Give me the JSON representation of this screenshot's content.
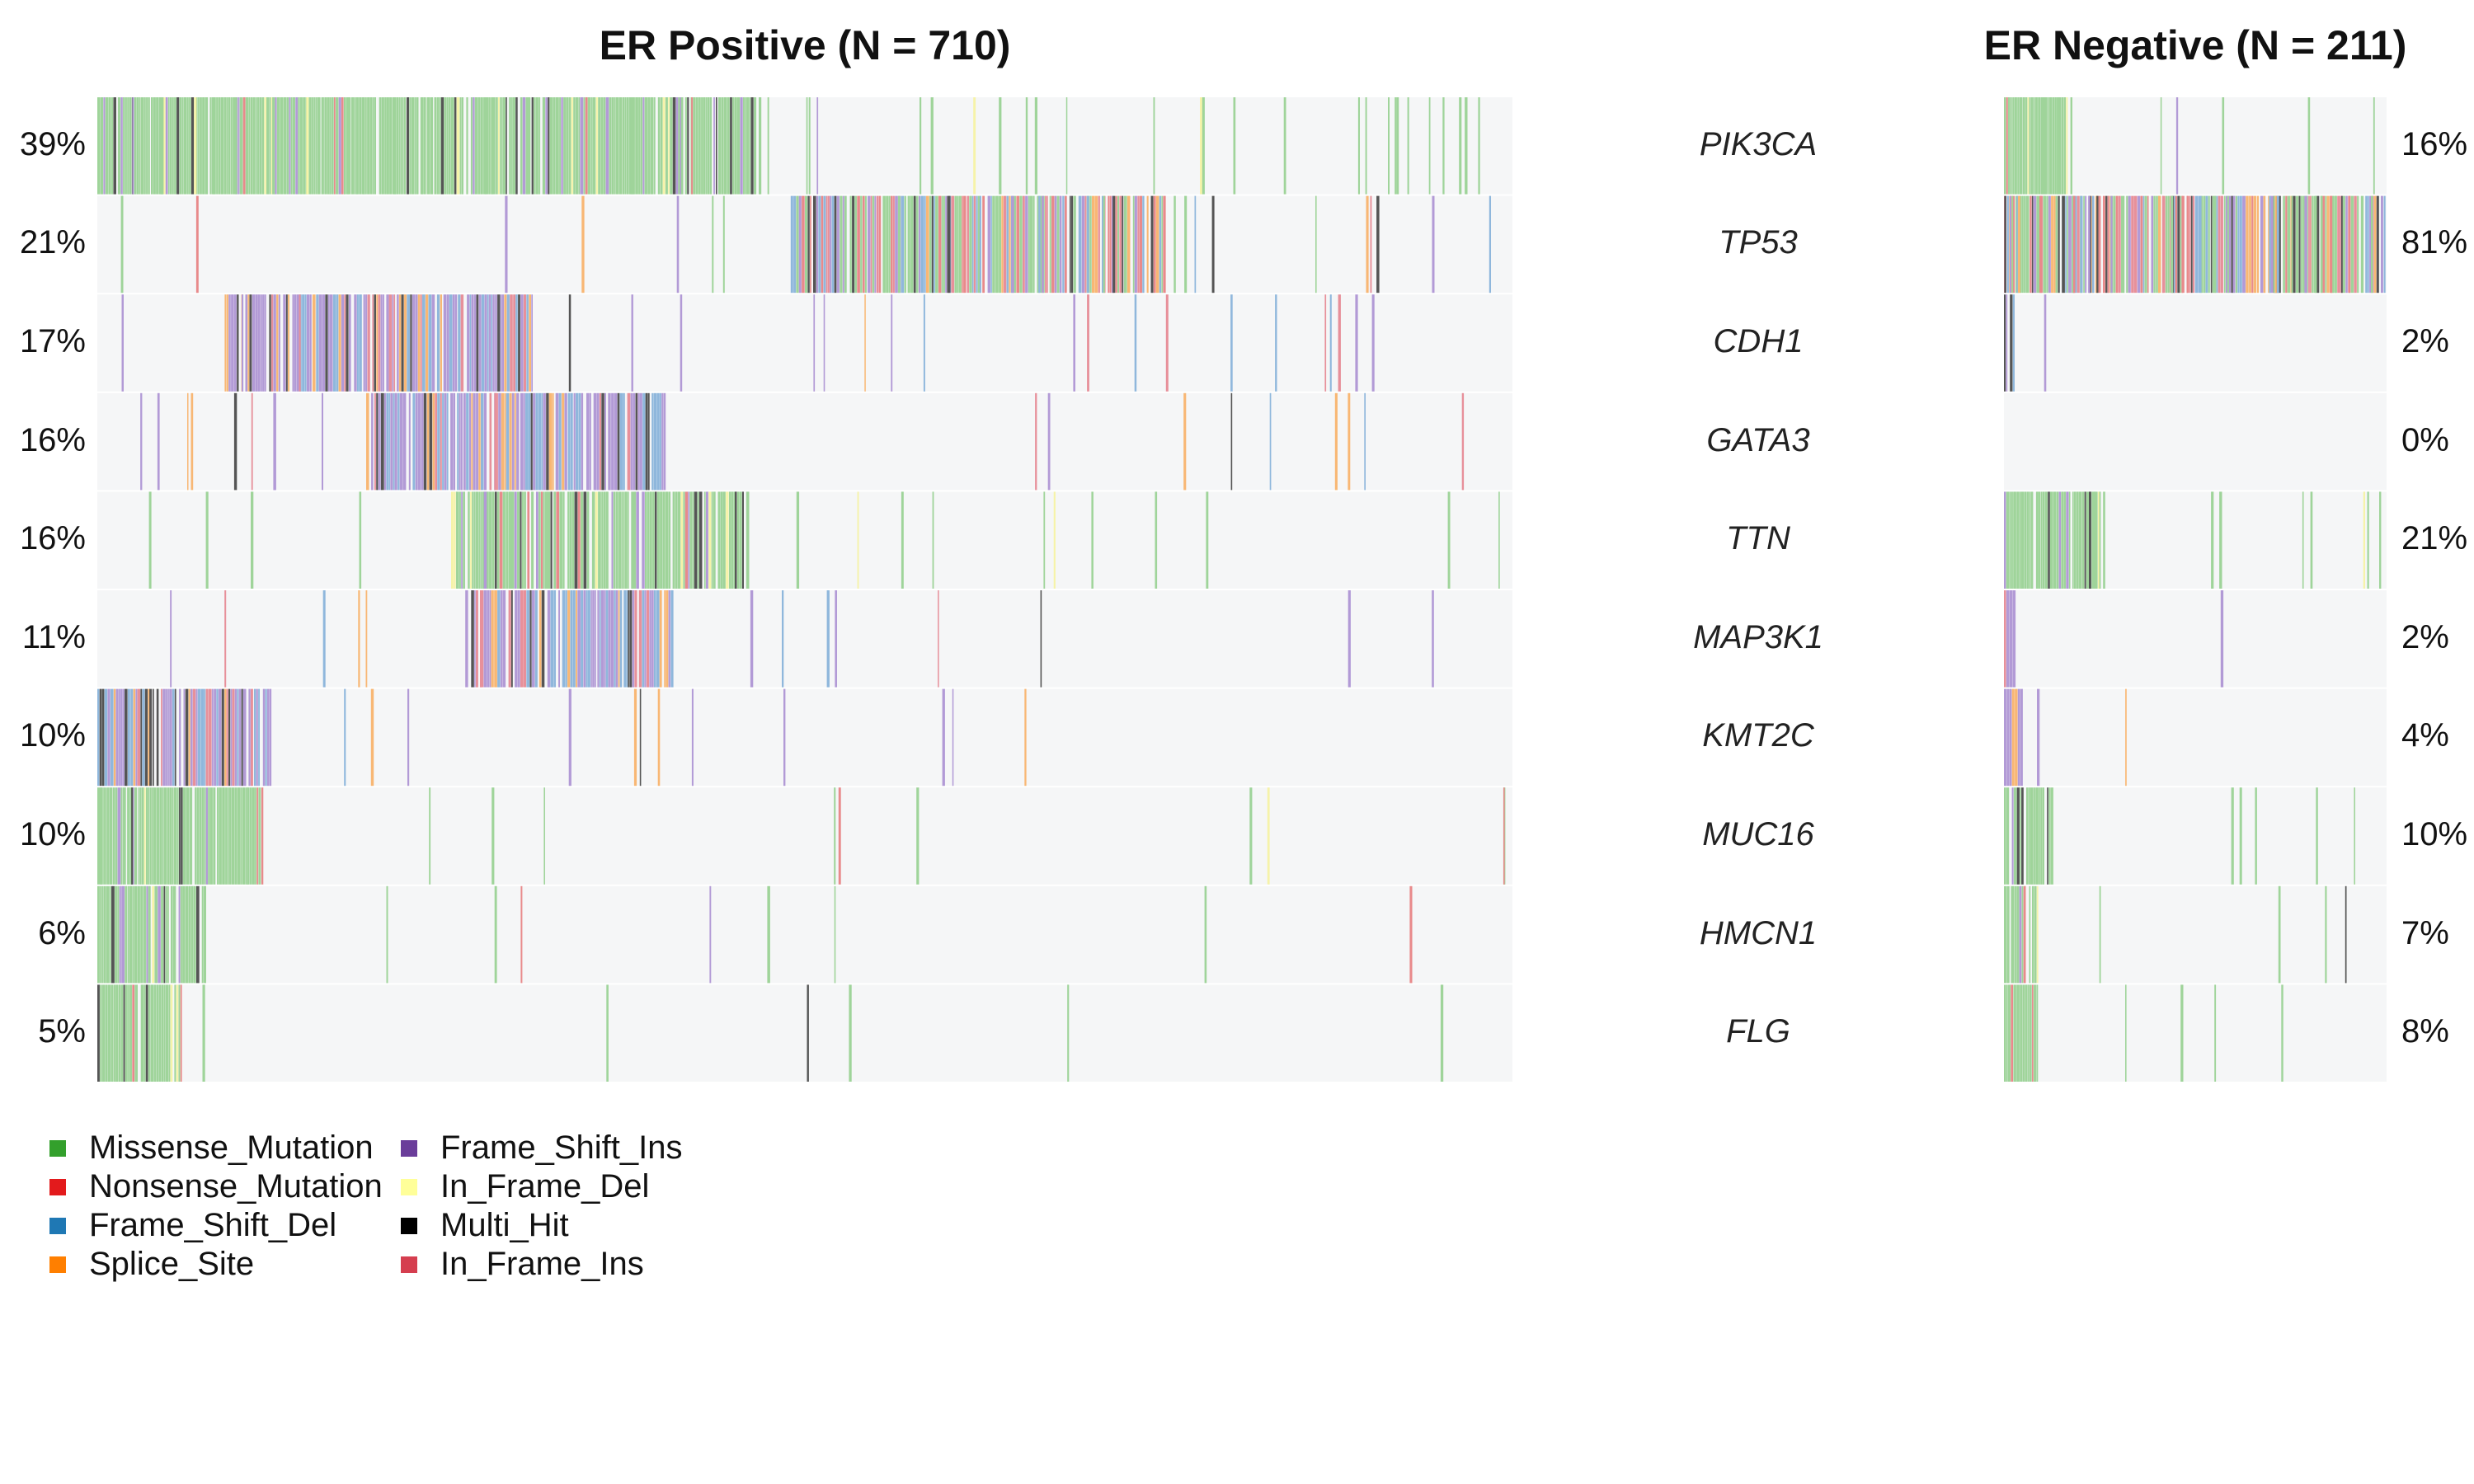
{
  "chart_data": {
    "type": "heatmap",
    "panels": [
      {
        "title": "ER Positive (N = 710)",
        "side": "left"
      },
      {
        "title": "ER Negative (N = 211)",
        "side": "right"
      }
    ],
    "genes": [
      "PIK3CA",
      "TP53",
      "CDH1",
      "GATA3",
      "TTN",
      "MAP3K1",
      "KMT2C",
      "MUC16",
      "HMCN1",
      "FLG"
    ],
    "er_positive_pct": [
      "39%",
      "21%",
      "17%",
      "16%",
      "16%",
      "11%",
      "10%",
      "10%",
      "6%",
      "5%"
    ],
    "er_negative_pct": [
      "16%",
      "81%",
      "2%",
      "0%",
      "21%",
      "2%",
      "4%",
      "10%",
      "7%",
      "8%"
    ],
    "er_positive_values": [
      39,
      21,
      17,
      16,
      16,
      11,
      10,
      10,
      6,
      5
    ],
    "er_negative_values": [
      16,
      81,
      2,
      0,
      21,
      2,
      4,
      10,
      7,
      8
    ],
    "legend": [
      {
        "label": "Missense_Mutation",
        "color": "#33a02c"
      },
      {
        "label": "Nonsense_Mutation",
        "color": "#e31a1c"
      },
      {
        "label": "Frame_Shift_Del",
        "color": "#1f78b4"
      },
      {
        "label": "Splice_Site",
        "color": "#ff7f00"
      },
      {
        "label": "Frame_Shift_Ins",
        "color": "#6a3d9a"
      },
      {
        "label": "In_Frame_Del",
        "color": "#ffff99"
      },
      {
        "label": "Multi_Hit",
        "color": "#000000"
      },
      {
        "label": "In_Frame_Ins",
        "color": "#d53e4f"
      }
    ],
    "background_color": "#f5f6f7"
  }
}
